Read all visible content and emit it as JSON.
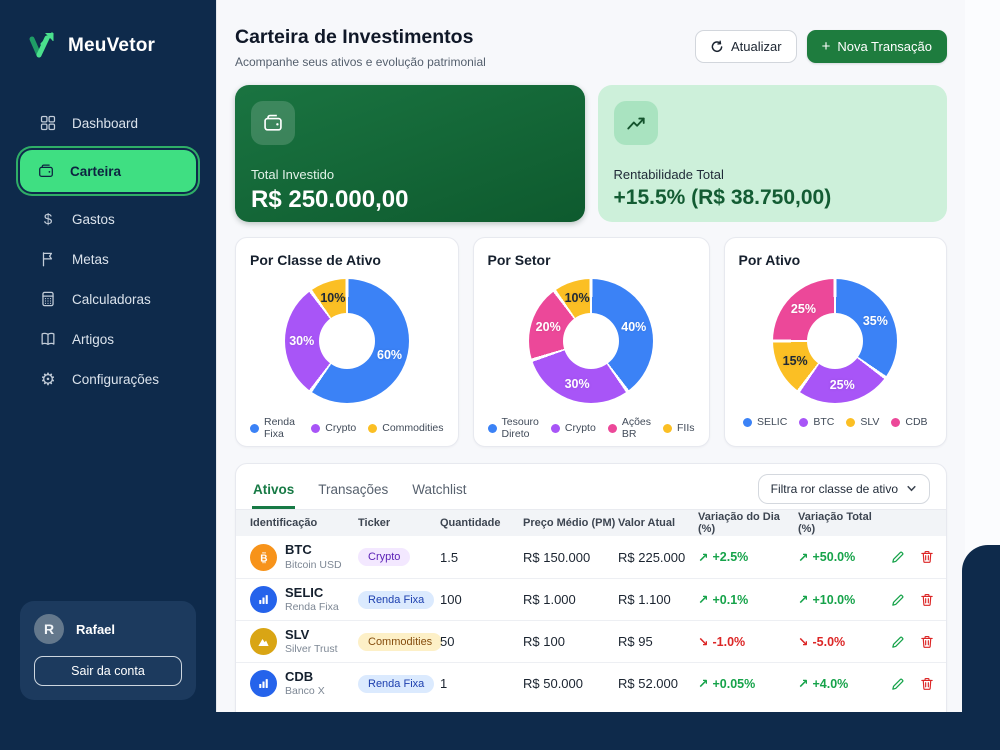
{
  "app": {
    "brand": "MeuVetor"
  },
  "colors": {
    "sidebar_navy": "#0e2a4b",
    "accent_green": "#3fdf82",
    "primary_button_green": "#1e7c3e",
    "positive": "#16a34a",
    "negative": "#dc2626"
  },
  "sidebar": {
    "items": [
      {
        "label": "Dashboard",
        "icon": "dashboard-grid-icon",
        "key": "dashboard",
        "active": false
      },
      {
        "label": "Carteira",
        "icon": "wallet-icon",
        "key": "wallet",
        "active": true
      },
      {
        "label": "Gastos",
        "icon": "dollar-icon",
        "key": "dollar",
        "active": false
      },
      {
        "label": "Metas",
        "icon": "flag-icon",
        "key": "flag",
        "active": false
      },
      {
        "label": "Calculadoras",
        "icon": "calculator-icon",
        "key": "calculator",
        "active": false
      },
      {
        "label": "Artigos",
        "icon": "book-icon",
        "key": "book",
        "active": false
      },
      {
        "label": "Configurações",
        "icon": "gear-icon",
        "key": "gear",
        "active": false
      }
    ],
    "user": {
      "initial": "R",
      "name": "Rafael",
      "logout_label": "Sair da conta"
    }
  },
  "header": {
    "title": "Carteira de Investimentos",
    "subtitle": "Acompanhe seus ativos e evolução patrimonial",
    "refresh_label": "Atualizar",
    "new_transaction_label": "Nova Transação"
  },
  "summary": {
    "cards": [
      {
        "label": "Total Investido",
        "value": "R$ 250.000,00",
        "icon": "wallet-icon",
        "theme": "dark-green"
      },
      {
        "label": "Rentabilidade Total",
        "value": "+15.5% (R$ 38.750,00)",
        "icon": "trending-up-icon",
        "theme": "light-green"
      }
    ]
  },
  "chart_data": [
    {
      "type": "pie",
      "donut": true,
      "title": "Por Classe de Ativo",
      "legend_position": "bottom",
      "slices": [
        {
          "label": "Renda Fixa",
          "value": 60,
          "color": "#3b82f6",
          "label_color": "#ffffff"
        },
        {
          "label": "Crypto",
          "value": 30,
          "color": "#a855f7",
          "label_color": "#ffffff"
        },
        {
          "label": "Commodities",
          "value": 10,
          "color": "#fbbf24",
          "label_color": "#1f2937"
        }
      ]
    },
    {
      "type": "pie",
      "donut": true,
      "title": "Por Setor",
      "legend_position": "bottom",
      "slices": [
        {
          "label": "Tesouro Direto",
          "value": 40,
          "color": "#3b82f6",
          "label_color": "#ffffff"
        },
        {
          "label": "Crypto",
          "value": 30,
          "color": "#a855f7",
          "label_color": "#ffffff"
        },
        {
          "label": "Ações BR",
          "value": 20,
          "color": "#ec4899",
          "label_color": "#ffffff"
        },
        {
          "label": "FIIs",
          "value": 10,
          "color": "#fbbf24",
          "label_color": "#1f2937"
        }
      ]
    },
    {
      "type": "pie",
      "donut": true,
      "title": "Por Ativo",
      "legend_position": "bottom",
      "slices": [
        {
          "label": "SELIC",
          "value": 35,
          "color": "#3b82f6",
          "label_color": "#ffffff"
        },
        {
          "label": "BTC",
          "value": 25,
          "color": "#a855f7",
          "label_color": "#ffffff"
        },
        {
          "label": "SLV",
          "value": 15,
          "color": "#fbbf24",
          "label_color": "#1f2937"
        },
        {
          "label": "CDB",
          "value": 25,
          "color": "#ec4899",
          "label_color": "#ffffff"
        }
      ]
    }
  ],
  "table": {
    "tabs": [
      {
        "label": "Ativos",
        "active": true
      },
      {
        "label": "Transações",
        "active": false
      },
      {
        "label": "Watchlist",
        "active": false
      }
    ],
    "filter_label": "Filtra ror classe de ativo",
    "columns": [
      "Identificação",
      "Ticker",
      "Quantidade",
      "Preço Médio (PM)",
      "Valor Atual",
      "Variação do Dia (%)",
      "Variação Total (%)"
    ],
    "rows": [
      {
        "symbol": "BTC",
        "name": "Bitcoin USD",
        "icon": "btc",
        "icon_bg": "#f7931a",
        "badge": "Crypto",
        "badge_bg": "#f3e8ff",
        "badge_color": "#5b21b6",
        "qty": "1.5",
        "avg_price": "R$ 150.000",
        "current": "R$ 225.000",
        "day": "+2.5%",
        "day_dir": "up",
        "total": "+50.0%",
        "total_dir": "up"
      },
      {
        "symbol": "SELIC",
        "name": "Renda Fixa",
        "icon": "bars",
        "icon_bg": "#2563eb",
        "badge": "Renda Fixa",
        "badge_bg": "#dbeafe",
        "badge_color": "#1e40af",
        "qty": "100",
        "avg_price": "R$ 1.000",
        "current": "R$ 1.100",
        "day": "+0.1%",
        "day_dir": "up",
        "total": "+10.0%",
        "total_dir": "up"
      },
      {
        "symbol": "SLV",
        "name": "Silver Trust",
        "icon": "mountain",
        "icon_bg": "#d9a514",
        "badge": "Commodities",
        "badge_bg": "#fdf0c7",
        "badge_color": "#854d0e",
        "qty": "50",
        "avg_price": "R$ 100",
        "current": "R$ 95",
        "day": "-1.0%",
        "day_dir": "down",
        "total": "-5.0%",
        "total_dir": "down"
      },
      {
        "symbol": "CDB",
        "name": "Banco X",
        "icon": "bars",
        "icon_bg": "#2563eb",
        "badge": "Renda Fixa",
        "badge_bg": "#dbeafe",
        "badge_color": "#1e40af",
        "qty": "1",
        "avg_price": "R$ 50.000",
        "current": "R$ 52.000",
        "day": "+0.05%",
        "day_dir": "up",
        "total": "+4.0%",
        "total_dir": "up"
      }
    ]
  }
}
